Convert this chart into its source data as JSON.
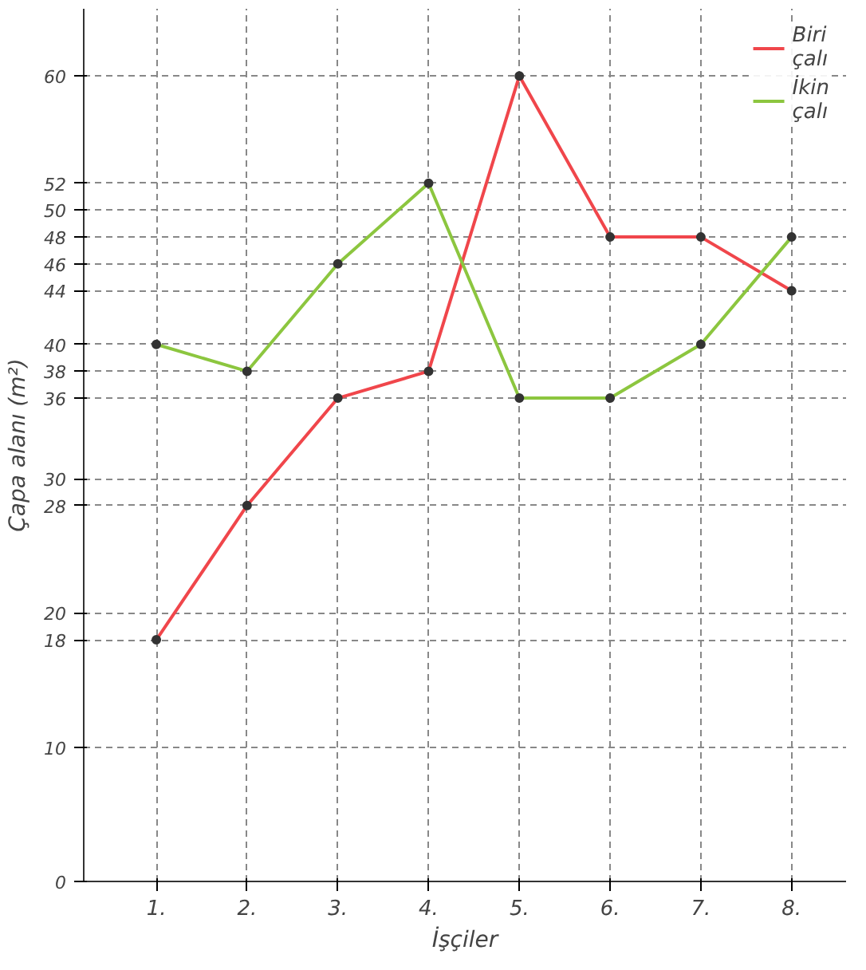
{
  "chart_data": {
    "type": "line",
    "ylabel": "Çapa alanı (m²)",
    "xlabel": "İşçiler",
    "categories": [
      "1.",
      "2.",
      "3.",
      "4.",
      "5.",
      "6.",
      "7.",
      "8."
    ],
    "series": [
      {
        "name": "Biri\nçalı",
        "color": "#f0464b",
        "values": [
          18,
          28,
          36,
          38,
          60,
          48,
          48,
          44
        ]
      },
      {
        "name": "İkin\nçalı",
        "color": "#8cc63f",
        "values": [
          40,
          38,
          46,
          52,
          36,
          36,
          40,
          48
        ]
      }
    ],
    "ylim": [
      0,
      65
    ],
    "yticks": [
      0,
      10,
      18,
      20,
      28,
      30,
      36,
      38,
      40,
      44,
      46,
      48,
      50,
      52,
      60
    ],
    "grid": true,
    "legend": "top right",
    "marker": "circle",
    "line_style": "solid"
  }
}
